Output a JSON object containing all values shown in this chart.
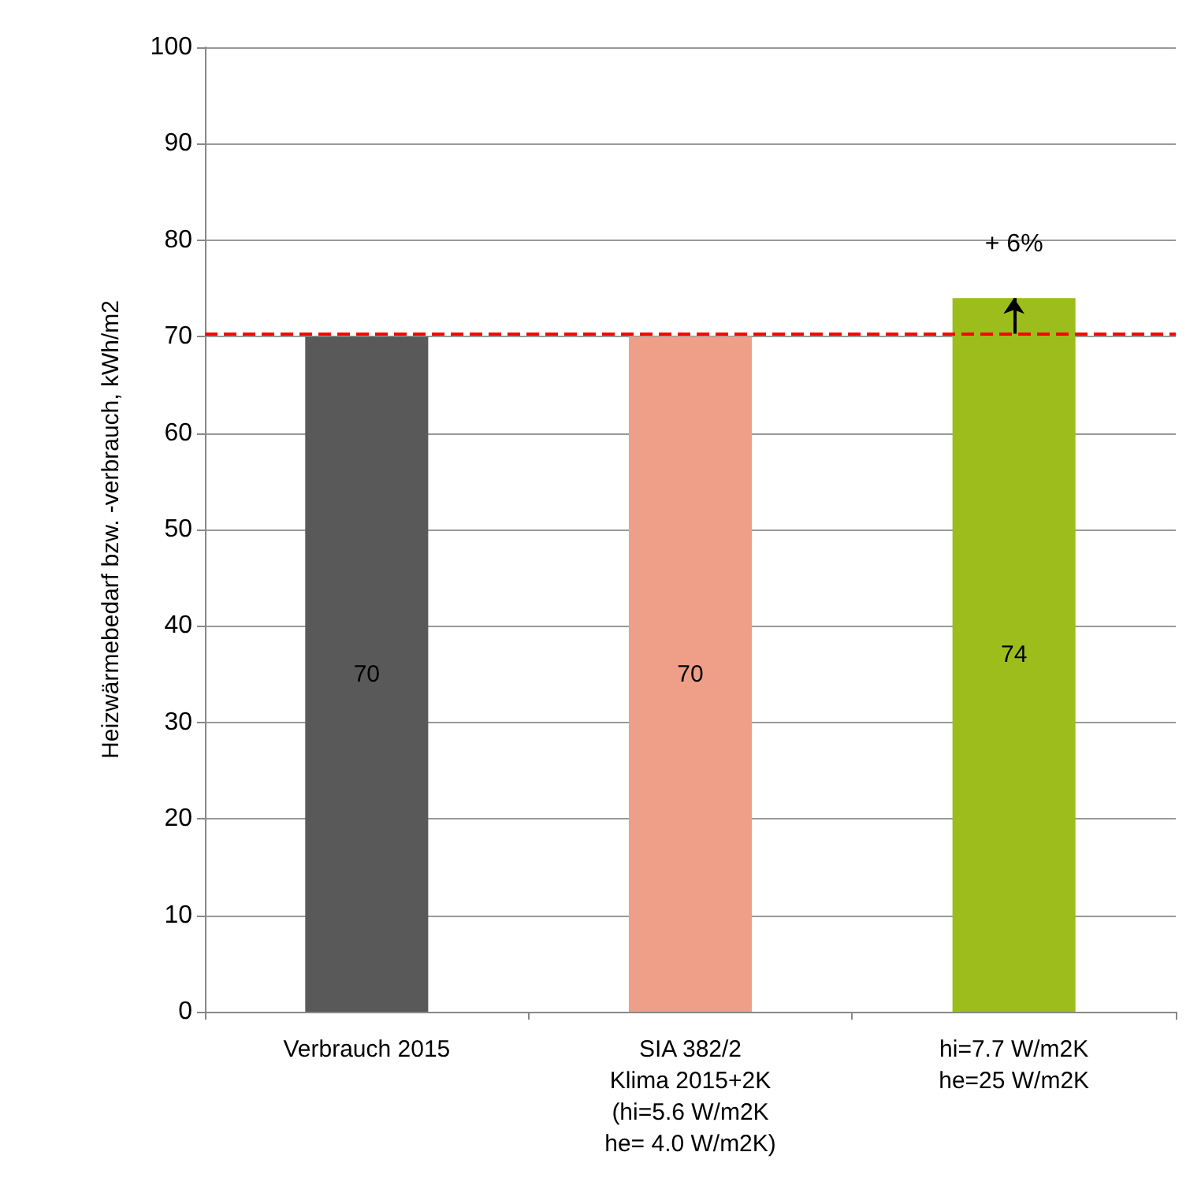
{
  "chart_data": {
    "type": "bar",
    "ylabel": "Heizwärmebedarf bzw. -verbrauch, kWh/m2",
    "categories": [
      "Verbrauch 2015",
      "SIA 382/2\nKlima 2015+2K\n(hi=5.6 W/m2K\nhe= 4.0 W/m2K)",
      "hi=7.7 W/m2K\nhe=25 W/m2K"
    ],
    "values": [
      70,
      70,
      74
    ],
    "colors": [
      "#595959",
      "#ef9f88",
      "#9cbd1c"
    ],
    "ylim": [
      0,
      100
    ],
    "yticks": [
      0,
      10,
      20,
      30,
      40,
      50,
      60,
      70,
      80,
      90,
      100
    ],
    "grid": "y",
    "data_labels": true,
    "ref_lines": [
      {
        "axis": "y",
        "value": 70.3,
        "color": "#ff0000",
        "line_style": "dashed"
      }
    ],
    "annotations": [
      "+ 6%"
    ]
  }
}
